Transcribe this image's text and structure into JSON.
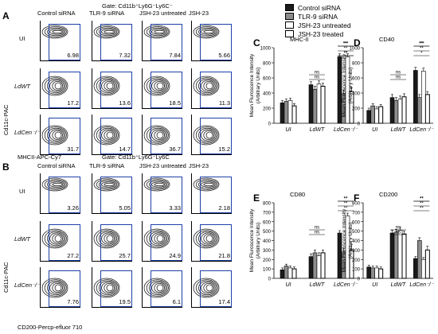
{
  "panels": {
    "A": {
      "letter": "A",
      "gate": "Gate: Cd11b⁺Ly6G⁻Ly6C⁻",
      "columns": [
        "Control siRNA",
        "TLR-9 siRNA",
        "JSH-23 untreated",
        "JSH-23"
      ],
      "rows": [
        {
          "label": "UI",
          "values": [
            "6.98",
            "7.32",
            "7.84",
            "5.66"
          ]
        },
        {
          "label": "LdWT",
          "values": [
            "17.2",
            "13.6",
            "18.5",
            "11.3"
          ]
        },
        {
          "label": "LdCen⁻/⁻",
          "values": [
            "31.7",
            "14.7",
            "36.7",
            "15.2"
          ]
        }
      ],
      "yaxis": "Cd11c-PAC",
      "xaxis": "MHCII-APC-Cy7"
    },
    "B": {
      "letter": "B",
      "gate": "Gate: Cd11b⁺Ly6G⁻Ly6C",
      "columns": [
        "Control siRNA",
        "TLR-9 siRNA",
        "JSH-23 untreated",
        "JSH-23"
      ],
      "rows": [
        {
          "label": "UI",
          "values": [
            "3.26",
            "5.05",
            "3.33",
            "2.18"
          ]
        },
        {
          "label": "LdWT",
          "values": [
            "27.2",
            "25.7",
            "24.9",
            "21.8"
          ]
        },
        {
          "label": "LdCen⁻/⁻",
          "values": [
            "7.76",
            "19.5",
            "6.1",
            "17.4"
          ]
        }
      ],
      "yaxis": "Cd11c-PAC",
      "xaxis": "CD200-Percp-efluor 710"
    }
  },
  "legend": {
    "items": [
      {
        "label": "Control siRNA",
        "color": "#1a1a1a"
      },
      {
        "label": "TLR-9 siRNA",
        "color": "#8c8c8c"
      },
      {
        "label": "JSH-23 untreated",
        "color": "#ffffff"
      },
      {
        "label": "JSH-23 treated",
        "color": "#ffffff"
      }
    ]
  },
  "chart_data": [
    {
      "panel": "C",
      "type": "bar",
      "title": "MHC-II",
      "ylabel": "Mean Fluroscence Intensity\n(Arbitrary Units)",
      "categories": [
        "UI",
        "LdWT",
        "LdCen⁻/⁻"
      ],
      "ylim": [
        0,
        1000
      ],
      "yticks": [
        0,
        200,
        400,
        600,
        800,
        1000
      ],
      "series": [
        {
          "name": "Control siRNA",
          "values": [
            270,
            510,
            880
          ],
          "errors": [
            30,
            40,
            40
          ]
        },
        {
          "name": "TLR-9 siRNA",
          "values": [
            290,
            450,
            390
          ],
          "errors": [
            30,
            40,
            50
          ]
        },
        {
          "name": "JSH-23 untreated",
          "values": [
            300,
            520,
            880
          ],
          "errors": [
            30,
            40,
            40
          ]
        },
        {
          "name": "JSH-23 treated",
          "values": [
            230,
            490,
            420
          ],
          "errors": [
            30,
            40,
            50
          ]
        }
      ],
      "annotations": [
        "ns",
        "ns",
        "***",
        "**",
        "**",
        "**",
        "**"
      ]
    },
    {
      "panel": "D",
      "type": "bar",
      "title": "CD40",
      "ylabel": "Mean Fluroscence Intensity\n(Arbitrary Units)",
      "categories": [
        "UI",
        "LdWT",
        "LdCen⁻/⁻"
      ],
      "ylim": [
        0,
        1000
      ],
      "yticks": [
        0,
        200,
        400,
        600,
        800,
        1000
      ],
      "series": [
        {
          "name": "Control siRNA",
          "values": [
            170,
            340,
            700
          ],
          "errors": [
            30,
            40,
            40
          ]
        },
        {
          "name": "TLR-9 siRNA",
          "values": [
            230,
            300,
            340
          ],
          "errors": [
            30,
            40,
            40
          ]
        },
        {
          "name": "JSH-23 untreated",
          "values": [
            190,
            320,
            690
          ],
          "errors": [
            30,
            40,
            40
          ]
        },
        {
          "name": "JSH-23 treated",
          "values": [
            220,
            350,
            380
          ],
          "errors": [
            30,
            40,
            40
          ]
        }
      ],
      "annotations": [
        "ns",
        "ns",
        "***",
        "*",
        "**",
        "**"
      ]
    },
    {
      "panel": "E",
      "type": "bar",
      "title": "CD80",
      "ylabel": "Mean Fluroscence Intensity\n(Arbitrary Units)",
      "categories": [
        "UI",
        "LdWT",
        "LdCen⁻/⁻"
      ],
      "ylim": [
        0,
        800
      ],
      "yticks": [
        0,
        100,
        200,
        300,
        400,
        500,
        600,
        700,
        800
      ],
      "series": [
        {
          "name": "Control siRNA",
          "values": [
            90,
            230,
            480
          ],
          "errors": [
            20,
            30,
            25
          ]
        },
        {
          "name": "TLR-9 siRNA",
          "values": [
            130,
            270,
            280
          ],
          "errors": [
            20,
            30,
            40
          ]
        },
        {
          "name": "JSH-23 untreated",
          "values": [
            110,
            240,
            660
          ],
          "errors": [
            20,
            30,
            30
          ]
        },
        {
          "name": "JSH-23 treated",
          "values": [
            100,
            270,
            300
          ],
          "errors": [
            20,
            30,
            60
          ]
        }
      ],
      "annotations": [
        "ns",
        "ns",
        "**",
        "**",
        "**",
        "**"
      ]
    },
    {
      "panel": "F",
      "type": "bar",
      "title": "CD200",
      "ylabel": "Mean Fluroscence Intensity\n(Arbitrary Units)",
      "categories": [
        "UI",
        "LdWT",
        "LdCen⁻/⁻"
      ],
      "ylim": [
        0,
        800
      ],
      "yticks": [
        0,
        100,
        200,
        300,
        400,
        500,
        600,
        700,
        800
      ],
      "series": [
        {
          "name": "Control siRNA",
          "values": [
            120,
            480,
            210
          ],
          "errors": [
            20,
            30,
            20
          ]
        },
        {
          "name": "TLR-9 siRNA",
          "values": [
            110,
            490,
            400
          ],
          "errors": [
            20,
            30,
            30
          ]
        },
        {
          "name": "JSH-23 untreated",
          "values": [
            110,
            510,
            200
          ],
          "errors": [
            20,
            30,
            20
          ]
        },
        {
          "name": "JSH-23 treated",
          "values": [
            100,
            470,
            300
          ],
          "errors": [
            20,
            30,
            40
          ]
        }
      ],
      "annotations": [
        "ns",
        "ns",
        "**",
        "**",
        "**",
        "**"
      ]
    }
  ]
}
